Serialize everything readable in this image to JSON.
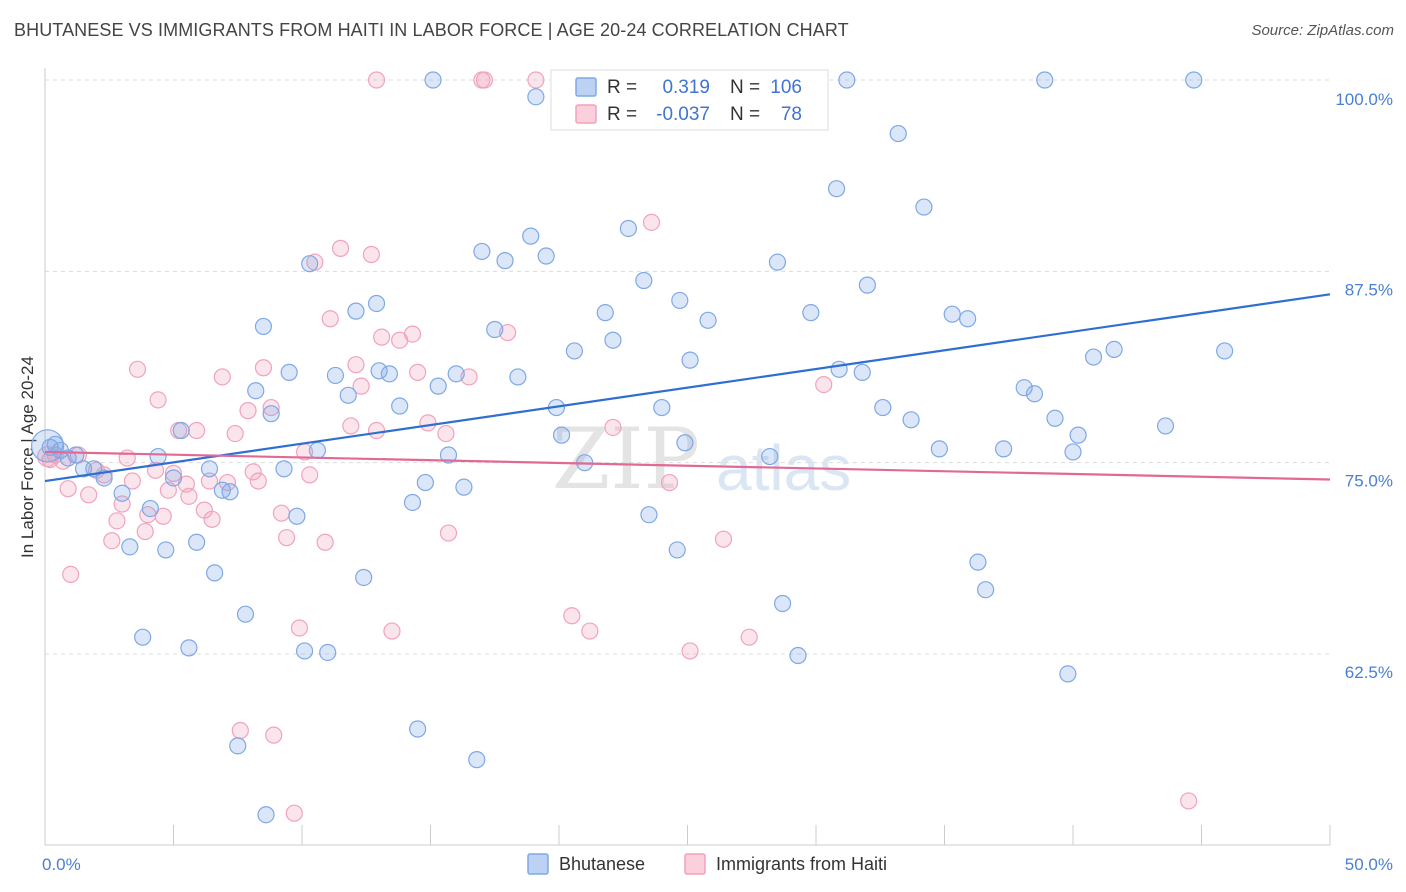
{
  "title": "BHUTANESE VS IMMIGRANTS FROM HAITI IN LABOR FORCE | AGE 20-24 CORRELATION CHART",
  "source": "Source: ZipAtlas.com",
  "watermark": {
    "zip": "ZIP",
    "atlas": "atlas"
  },
  "chart_data": {
    "type": "scatter",
    "xlabel": "",
    "ylabel": "In Labor Force | Age 20-24",
    "xlim": [
      0,
      50
    ],
    "ylim": [
      52.5,
      102.5
    ],
    "x_tick_labels": [
      "0.0%",
      "50.0%"
    ],
    "y_ticks": [
      62.5,
      75.0,
      87.5,
      100.0
    ],
    "y_tick_labels": [
      "62.5%",
      "75.0%",
      "87.5%",
      "100.0%"
    ],
    "grid": "horizontal dashed",
    "legend_placement": "top-center",
    "colors": {
      "bhutanese": "#7ea8e6",
      "bhutanese_line": "#2f6fd1",
      "haiti": "#f2a2bc",
      "haiti_line": "#e06a95"
    },
    "stats": [
      {
        "r_label": "R =",
        "r": "0.319",
        "n_label": "N =",
        "n": "106"
      },
      {
        "r_label": "R =",
        "r": "-0.037",
        "n_label": "N =",
        "n": "78"
      }
    ],
    "series": [
      {
        "name": "Bhutanese",
        "trend": {
          "x": [
            0,
            50
          ],
          "y": [
            73.8,
            86.0
          ]
        },
        "points": [
          [
            0.2,
            76.0
          ],
          [
            0.4,
            76.2
          ],
          [
            0.6,
            75.8
          ],
          [
            0.9,
            75.3
          ],
          [
            1.2,
            75.5
          ],
          [
            1.5,
            74.6
          ],
          [
            1.9,
            74.6
          ],
          [
            2.3,
            74.0
          ],
          [
            3.0,
            73.0
          ],
          [
            3.3,
            69.5
          ],
          [
            3.8,
            63.6
          ],
          [
            4.1,
            72.0
          ],
          [
            4.4,
            75.4
          ],
          [
            4.7,
            69.3
          ],
          [
            5.0,
            74.0
          ],
          [
            5.3,
            77.1
          ],
          [
            5.6,
            62.9
          ],
          [
            5.9,
            69.8
          ],
          [
            6.4,
            74.6
          ],
          [
            6.6,
            67.8
          ],
          [
            6.9,
            73.2
          ],
          [
            7.2,
            73.1
          ],
          [
            7.5,
            56.5
          ],
          [
            7.8,
            65.1
          ],
          [
            8.2,
            79.7
          ],
          [
            8.5,
            83.9
          ],
          [
            8.8,
            78.2
          ],
          [
            9.3,
            74.6
          ],
          [
            9.5,
            80.9
          ],
          [
            9.8,
            71.5
          ],
          [
            10.1,
            62.7
          ],
          [
            10.3,
            88.0
          ],
          [
            10.6,
            75.8
          ],
          [
            11.0,
            62.6
          ],
          [
            11.3,
            80.7
          ],
          [
            11.8,
            79.4
          ],
          [
            12.1,
            84.9
          ],
          [
            12.4,
            67.5
          ],
          [
            12.9,
            85.4
          ],
          [
            13.0,
            81.0
          ],
          [
            13.4,
            80.8
          ],
          [
            13.8,
            78.7
          ],
          [
            14.3,
            72.4
          ],
          [
            14.5,
            57.6
          ],
          [
            14.8,
            73.7
          ],
          [
            15.3,
            80.0
          ],
          [
            15.7,
            75.5
          ],
          [
            16.0,
            80.8
          ],
          [
            16.3,
            73.4
          ],
          [
            16.8,
            55.6
          ],
          [
            17.0,
            88.8
          ],
          [
            17.5,
            83.7
          ],
          [
            17.9,
            88.2
          ],
          [
            18.4,
            80.6
          ],
          [
            18.9,
            89.8
          ],
          [
            19.1,
            98.9
          ],
          [
            19.5,
            88.5
          ],
          [
            19.9,
            78.6
          ],
          [
            20.1,
            76.8
          ],
          [
            20.6,
            82.3
          ],
          [
            21.0,
            75.0
          ],
          [
            21.8,
            84.8
          ],
          [
            22.1,
            83.0
          ],
          [
            22.7,
            90.3
          ],
          [
            23.3,
            86.9
          ],
          [
            23.5,
            71.6
          ],
          [
            24.0,
            78.6
          ],
          [
            24.6,
            69.3
          ],
          [
            24.9,
            76.3
          ],
          [
            24.7,
            85.6
          ],
          [
            25.1,
            81.7
          ],
          [
            25.8,
            84.3
          ],
          [
            28.5,
            88.1
          ],
          [
            28.2,
            75.4
          ],
          [
            28.7,
            65.8
          ],
          [
            29.3,
            62.4
          ],
          [
            29.8,
            84.8
          ],
          [
            30.9,
            81.1
          ],
          [
            30.8,
            92.9
          ],
          [
            31.8,
            80.9
          ],
          [
            32.0,
            86.6
          ],
          [
            32.6,
            78.6
          ],
          [
            33.2,
            96.5
          ],
          [
            33.7,
            77.8
          ],
          [
            34.2,
            91.7
          ],
          [
            34.8,
            75.9
          ],
          [
            35.3,
            84.7
          ],
          [
            35.9,
            84.4
          ],
          [
            36.3,
            68.5
          ],
          [
            36.6,
            66.7
          ],
          [
            37.3,
            75.9
          ],
          [
            38.1,
            79.9
          ],
          [
            38.5,
            79.5
          ],
          [
            38.9,
            100.0
          ],
          [
            39.3,
            77.9
          ],
          [
            39.8,
            61.2
          ],
          [
            40.0,
            75.7
          ],
          [
            40.2,
            76.8
          ],
          [
            40.8,
            81.9
          ],
          [
            41.6,
            82.4
          ],
          [
            43.6,
            77.4
          ],
          [
            44.7,
            100.0
          ],
          [
            45.9,
            82.3
          ],
          [
            15.1,
            100.0
          ],
          [
            31.2,
            100.0
          ],
          [
            8.6,
            52.0
          ]
        ]
      },
      {
        "name": "Immigrants from Haiti",
        "trend": {
          "x": [
            0,
            50
          ],
          "y": [
            75.7,
            73.9
          ]
        },
        "points": [
          [
            0.2,
            75.2
          ],
          [
            0.4,
            75.5
          ],
          [
            0.7,
            75.1
          ],
          [
            0.9,
            73.3
          ],
          [
            1.0,
            67.7
          ],
          [
            1.3,
            75.5
          ],
          [
            1.7,
            72.9
          ],
          [
            2.0,
            74.5
          ],
          [
            2.3,
            74.2
          ],
          [
            2.6,
            69.9
          ],
          [
            2.8,
            71.2
          ],
          [
            3.0,
            72.3
          ],
          [
            3.2,
            75.3
          ],
          [
            3.4,
            73.8
          ],
          [
            3.6,
            81.1
          ],
          [
            3.9,
            70.5
          ],
          [
            4.0,
            71.6
          ],
          [
            4.3,
            74.5
          ],
          [
            4.4,
            79.1
          ],
          [
            4.6,
            71.5
          ],
          [
            4.8,
            73.2
          ],
          [
            5.0,
            74.3
          ],
          [
            5.2,
            77.1
          ],
          [
            5.5,
            73.6
          ],
          [
            5.6,
            72.8
          ],
          [
            5.9,
            77.1
          ],
          [
            6.2,
            71.9
          ],
          [
            6.4,
            73.8
          ],
          [
            6.5,
            71.3
          ],
          [
            6.9,
            80.6
          ],
          [
            7.1,
            73.7
          ],
          [
            7.4,
            76.9
          ],
          [
            7.6,
            57.5
          ],
          [
            7.9,
            78.4
          ],
          [
            8.1,
            74.4
          ],
          [
            8.3,
            73.8
          ],
          [
            8.5,
            81.2
          ],
          [
            8.8,
            78.6
          ],
          [
            8.9,
            57.2
          ],
          [
            9.2,
            71.7
          ],
          [
            9.4,
            70.1
          ],
          [
            9.7,
            52.1
          ],
          [
            9.9,
            64.2
          ],
          [
            10.1,
            75.7
          ],
          [
            10.3,
            74.2
          ],
          [
            10.5,
            88.1
          ],
          [
            10.9,
            69.8
          ],
          [
            11.1,
            84.4
          ],
          [
            11.5,
            89.0
          ],
          [
            11.9,
            77.4
          ],
          [
            12.1,
            81.4
          ],
          [
            12.3,
            80.0
          ],
          [
            12.7,
            88.6
          ],
          [
            12.9,
            77.1
          ],
          [
            13.1,
            83.2
          ],
          [
            13.5,
            64.0
          ],
          [
            13.8,
            83.0
          ],
          [
            14.3,
            83.4
          ],
          [
            14.5,
            80.9
          ],
          [
            14.9,
            77.6
          ],
          [
            15.7,
            70.4
          ],
          [
            15.6,
            76.9
          ],
          [
            16.5,
            80.6
          ],
          [
            17.0,
            100.0
          ],
          [
            18.0,
            83.5
          ],
          [
            19.1,
            100.0
          ],
          [
            20.5,
            65.0
          ],
          [
            21.2,
            64.0
          ],
          [
            22.1,
            77.3
          ],
          [
            23.6,
            90.7
          ],
          [
            24.3,
            73.7
          ],
          [
            25.1,
            62.7
          ],
          [
            26.4,
            70.0
          ],
          [
            27.4,
            63.6
          ],
          [
            30.3,
            80.1
          ],
          [
            44.5,
            52.9
          ],
          [
            17.1,
            100.0
          ],
          [
            12.9,
            100.0
          ]
        ]
      }
    ]
  },
  "legend": {
    "items": [
      {
        "label": "Bhutanese"
      },
      {
        "label": "Immigrants from Haiti"
      }
    ]
  }
}
